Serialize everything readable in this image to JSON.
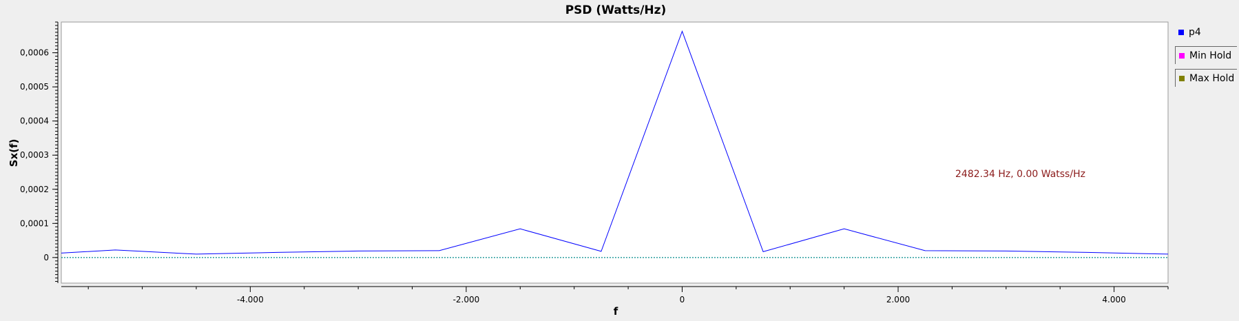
{
  "chart_data": {
    "type": "line",
    "title": "PSD (Watts/Hz)",
    "xlabel": "f",
    "ylabel": "Sx(f)",
    "xlim": [
      -5750,
      4500
    ],
    "ylim": [
      -7.5e-05,
      0.00069
    ],
    "xticks": [
      -4000,
      -2000,
      0,
      2000,
      4000
    ],
    "xtick_labels": [
      "-4.000",
      "-2.000",
      "0",
      "2.000",
      "4.000"
    ],
    "yticks": [
      0,
      0.0001,
      0.0002,
      0.0003,
      0.0004,
      0.0005,
      0.0006
    ],
    "ytick_labels": [
      "0",
      "0,0001",
      "0,0002",
      "0,0003",
      "0,0004",
      "0,0005",
      "0,0006"
    ],
    "grid": false,
    "legend_position": "right",
    "annotation": "2482.34 Hz, 0.00 Watss/Hz",
    "series": [
      {
        "name": "p4",
        "color": "#0000ff",
        "x": [
          -5750,
          -5250,
          -4500,
          -3750,
          -3000,
          -2250,
          -1500,
          -750,
          0,
          750,
          1500,
          2250,
          3000,
          3750,
          4500
        ],
        "y": [
          1.3e-05,
          2.2e-05,
          1e-05,
          1.5e-05,
          1.9e-05,
          2e-05,
          8.4e-05,
          1.8e-05,
          0.000663,
          1.7e-05,
          8.4e-05,
          2e-05,
          1.9e-05,
          1.5e-05,
          1e-05
        ]
      },
      {
        "name": "Min Hold",
        "color": "#ff00ff",
        "x": [],
        "y": []
      },
      {
        "name": "Max Hold",
        "color": "#808000",
        "x": [],
        "y": []
      }
    ],
    "baseline": {
      "y": 0,
      "color": "#008b8b",
      "style": "dotted"
    },
    "annotation_color": "#8b1a1a"
  }
}
